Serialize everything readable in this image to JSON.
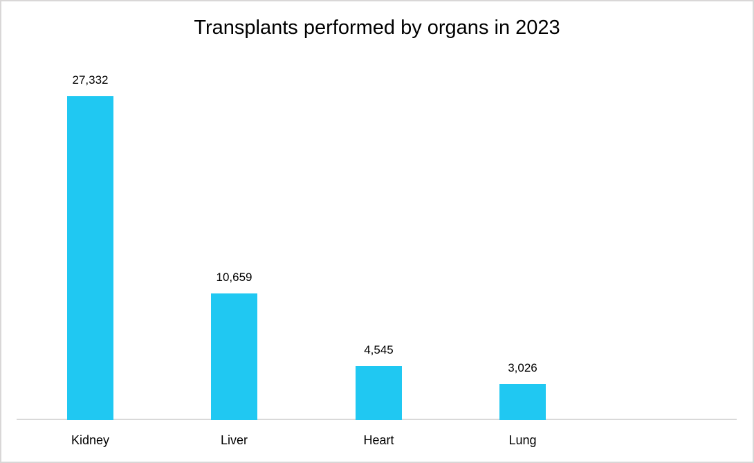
{
  "chart_data": {
    "type": "bar",
    "title": "Transplants performed by organs in 2023",
    "categories": [
      "Kidney",
      "Liver",
      "Heart",
      "Lung"
    ],
    "values": [
      27332,
      10659,
      4545,
      3026
    ],
    "data_labels": [
      "27,332",
      "10,659",
      "4,545",
      "3,026"
    ],
    "xlabel": "",
    "ylabel": "",
    "ylim": [
      0,
      27332
    ],
    "grid": false,
    "legend": false,
    "data_labels_shown": true,
    "bar_color": "#20c8f2",
    "axis_line_color": "#d9d9d9",
    "title_color": "#000000",
    "label_color": "#000000",
    "background_color": "#ffffff",
    "frame_border_color": "#d9d7d7"
  }
}
